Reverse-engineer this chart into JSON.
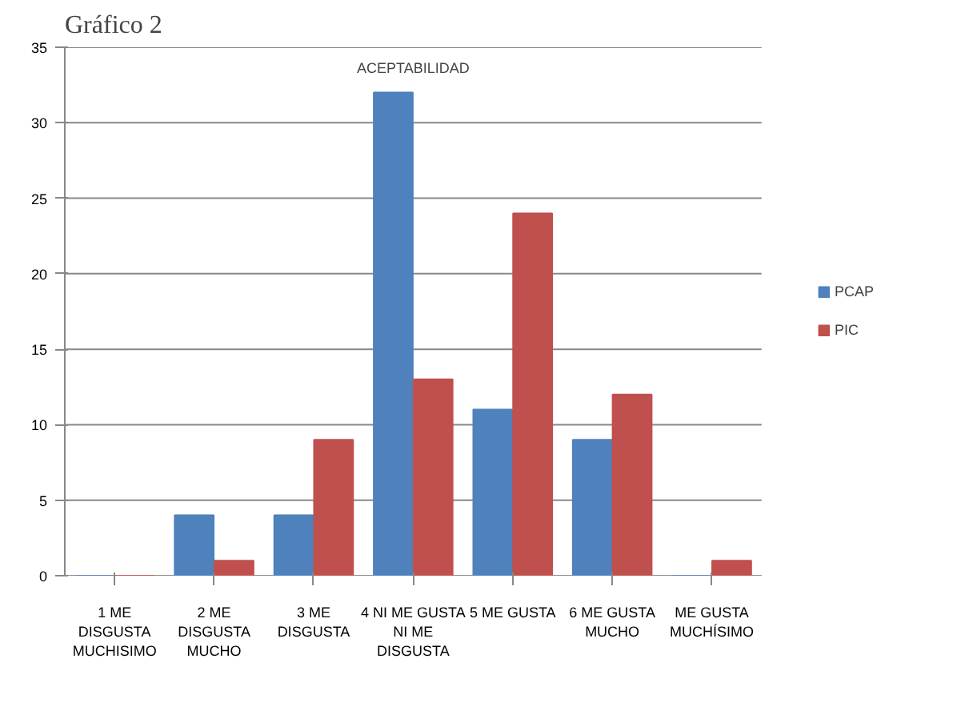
{
  "chart_data": {
    "type": "bar",
    "title": "ACEPTABILIDAD",
    "annotations": [
      "Gráfico 2"
    ],
    "categories": [
      "1 ME\nDISGUSTA\nMUCHISIMO",
      "2 ME\nDISGUSTA\nMUCHO",
      "3 ME\nDISGUSTA",
      "4 NI ME GUSTA\nNI ME\nDISGUSTA",
      "5 ME GUSTA",
      "6 ME GUSTA\nMUCHO",
      "ME GUSTA\nMUCHÍSIMO"
    ],
    "series": [
      {
        "name": "PCAP",
        "color": "#4f81bd",
        "values": [
          0,
          4,
          4,
          32,
          11,
          9,
          0
        ]
      },
      {
        "name": "PIC",
        "color": "#c0504d",
        "values": [
          0,
          1,
          9,
          13,
          24,
          12,
          1
        ]
      }
    ],
    "ylim": [
      0,
      35
    ],
    "yticks": [
      0,
      5,
      10,
      15,
      20,
      25,
      30,
      35
    ],
    "grid": "y",
    "legend": "right"
  }
}
